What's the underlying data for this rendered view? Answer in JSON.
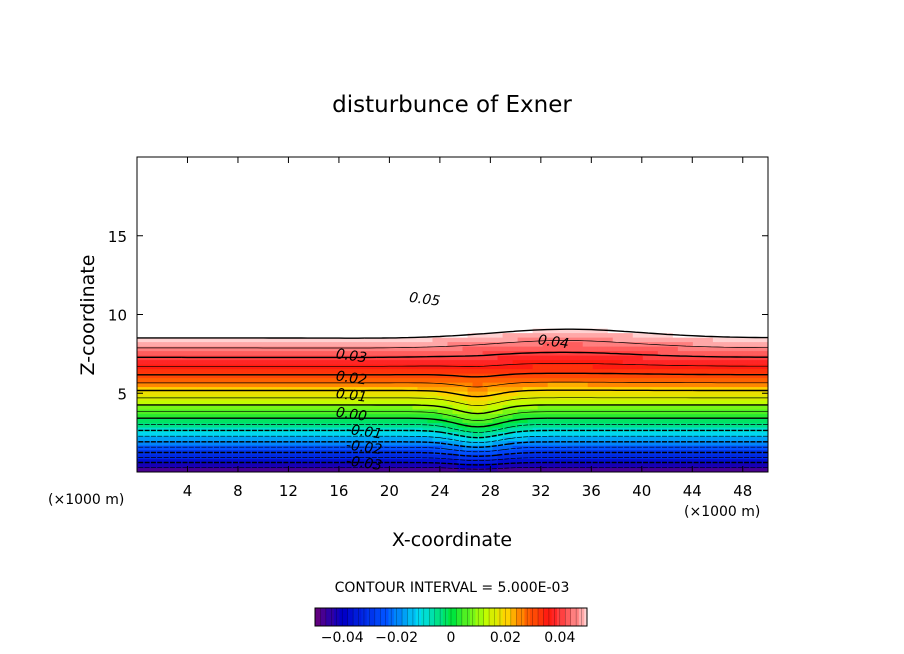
{
  "chart_data": {
    "type": "contour",
    "title": "disturbunce of Exner",
    "xlabel": "X-coordinate",
    "ylabel": "Z-coordinate",
    "x_unit_label": "(×1000 m)",
    "y_unit_label": "(×1000 m)",
    "xlim": [
      0,
      50
    ],
    "ylim": [
      0,
      20
    ],
    "x_ticks": [
      4,
      8,
      12,
      16,
      20,
      24,
      28,
      32,
      36,
      40,
      44,
      48
    ],
    "y_ticks": [
      5,
      10,
      15
    ],
    "contour_interval_label": "CONTOUR INTERVAL = 5.000E-03",
    "contour_labels": [
      {
        "text": "0.05",
        "x": 22.8,
        "z": 11.0
      },
      {
        "text": "0.04",
        "x": 33.0,
        "z": 8.3
      },
      {
        "text": "0.03",
        "x": 17.0,
        "z": 7.4
      },
      {
        "text": "0.02",
        "x": 17.0,
        "z": 6.0
      },
      {
        "text": "0.01",
        "x": 17.0,
        "z": 4.9
      },
      {
        "text": "0.00",
        "x": 17.0,
        "z": 3.7
      },
      {
        "text": "-0.01",
        "x": 18.0,
        "z": 2.6
      },
      {
        "text": "-0.02",
        "x": 18.0,
        "z": 1.6
      },
      {
        "text": "-0.03",
        "x": 18.0,
        "z": 0.6
      }
    ],
    "colorbar": {
      "range": [
        -0.05,
        0.05
      ],
      "tick_values": [
        -0.04,
        -0.02,
        0,
        0.02,
        0.04
      ],
      "tick_labels": [
        "−0.04",
        "−0.02",
        "0",
        "0.02",
        "0.04"
      ]
    },
    "colors": {
      "max_region": "#ffffff",
      "red": "#ff2020",
      "green": "#20e020",
      "cyan": "#20d0ff",
      "blue": "#0010c0",
      "purple": "#600080"
    }
  }
}
